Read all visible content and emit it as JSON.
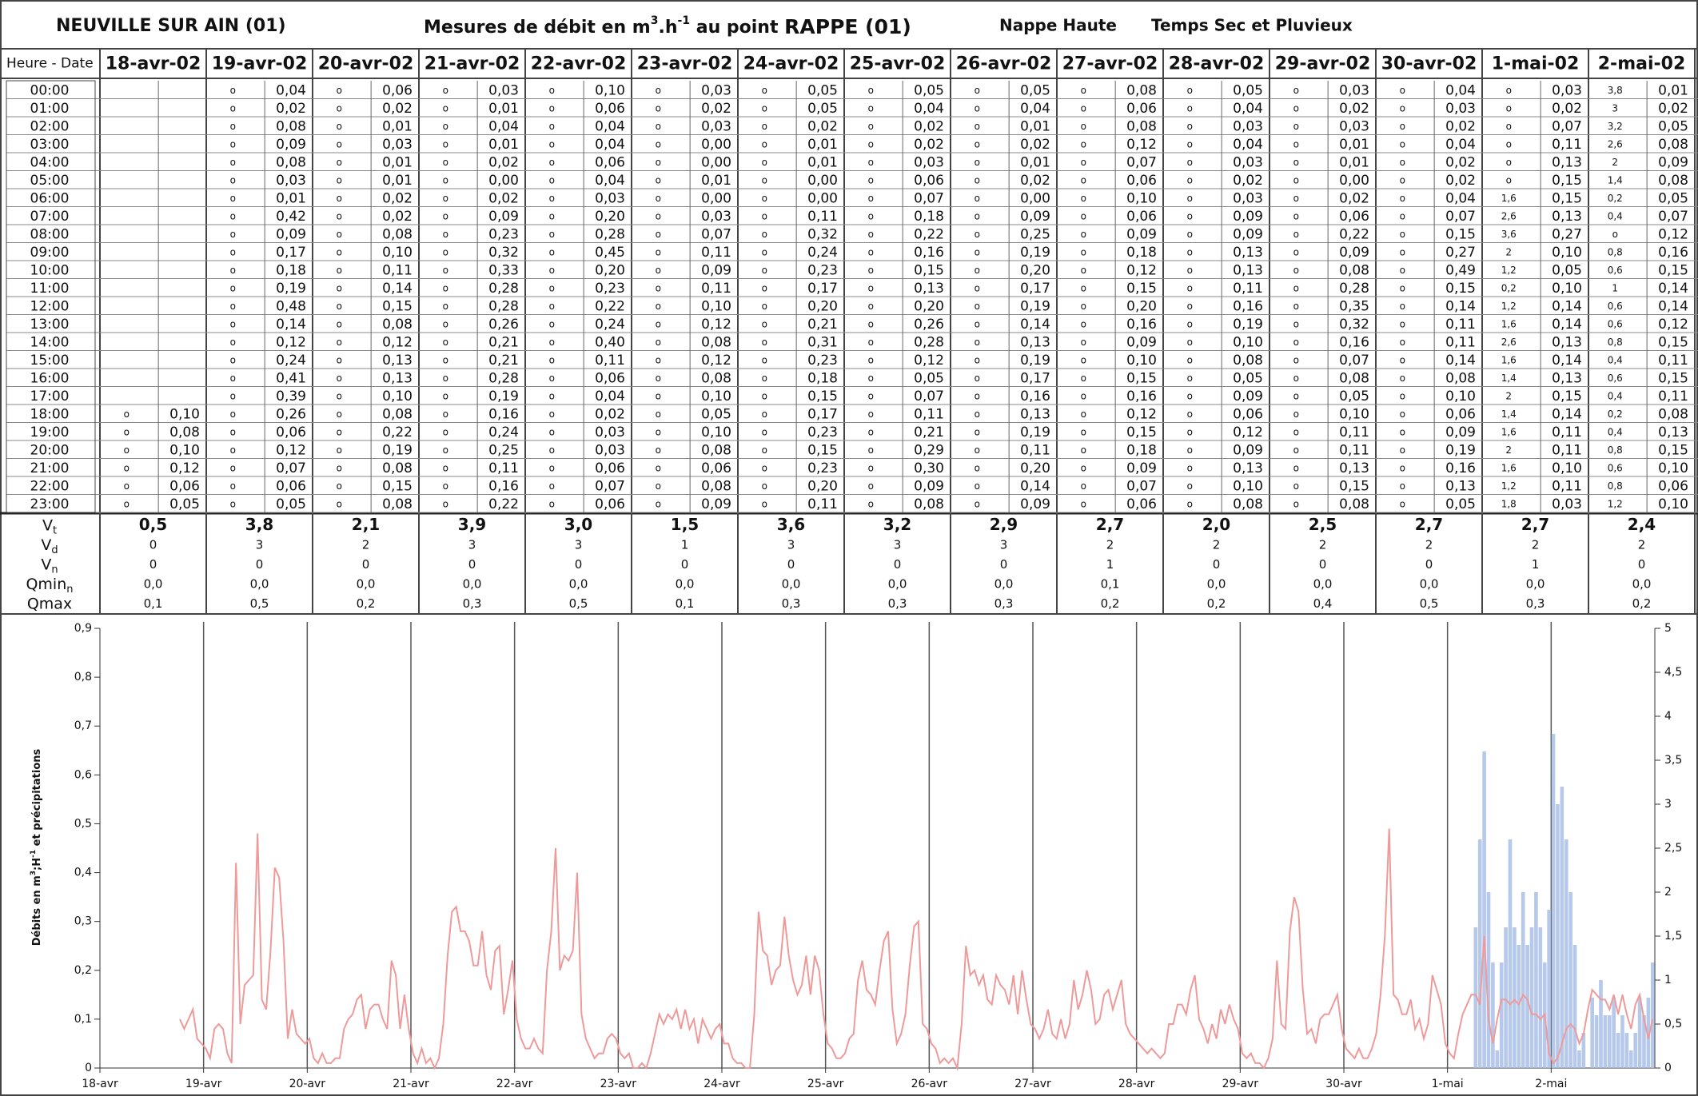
{
  "header": {
    "site": "NEUVILLE SUR AIN (01)",
    "title": [
      "Mesures de débit en m",
      "3",
      ".h",
      "-1",
      " au point ",
      "RAPPE (01)"
    ],
    "nappe": "Nappe Haute",
    "temps": "Temps Sec et Pluvieux"
  },
  "table": {
    "corner": "Heure - Date",
    "dates": [
      "18-avr-02",
      "19-avr-02",
      "20-avr-02",
      "21-avr-02",
      "22-avr-02",
      "23-avr-02",
      "24-avr-02",
      "25-avr-02",
      "26-avr-02",
      "27-avr-02",
      "28-avr-02",
      "29-avr-02",
      "30-avr-02",
      "1-mai-02",
      "2-mai-02"
    ],
    "hours": [
      "00:00",
      "01:00",
      "02:00",
      "03:00",
      "04:00",
      "05:00",
      "06:00",
      "07:00",
      "08:00",
      "09:00",
      "10:00",
      "11:00",
      "12:00",
      "13:00",
      "14:00",
      "15:00",
      "16:00",
      "17:00",
      "18:00",
      "19:00",
      "20:00",
      "21:00",
      "22:00",
      "23:00"
    ],
    "rain": [
      [
        null,
        null,
        null,
        null,
        null,
        null,
        null,
        null,
        null,
        null,
        null,
        null,
        null,
        null,
        null,
        null,
        null,
        null,
        "o",
        "o",
        "o",
        "o",
        "o",
        "o"
      ],
      [
        "o",
        "o",
        "o",
        "o",
        "o",
        "o",
        "o",
        "o",
        "o",
        "o",
        "o",
        "o",
        "o",
        "o",
        "o",
        "o",
        "o",
        "o",
        "o",
        "o",
        "o",
        "o",
        "o",
        "o"
      ],
      [
        "o",
        "o",
        "o",
        "o",
        "o",
        "o",
        "o",
        "o",
        "o",
        "o",
        "o",
        "o",
        "o",
        "o",
        "o",
        "o",
        "o",
        "o",
        "o",
        "o",
        "o",
        "o",
        "o",
        "o"
      ],
      [
        "o",
        "o",
        "o",
        "o",
        "o",
        "o",
        "o",
        "o",
        "o",
        "o",
        "o",
        "o",
        "o",
        "o",
        "o",
        "o",
        "o",
        "o",
        "o",
        "o",
        "o",
        "o",
        "o",
        "o"
      ],
      [
        "o",
        "o",
        "o",
        "o",
        "o",
        "o",
        "o",
        "o",
        "o",
        "o",
        "o",
        "o",
        "o",
        "o",
        "o",
        "o",
        "o",
        "o",
        "o",
        "o",
        "o",
        "o",
        "o",
        "o"
      ],
      [
        "o",
        "o",
        "o",
        "o",
        "o",
        "o",
        "o",
        "o",
        "o",
        "o",
        "o",
        "o",
        "o",
        "o",
        "o",
        "o",
        "o",
        "o",
        "o",
        "o",
        "o",
        "o",
        "o",
        "o"
      ],
      [
        "o",
        "o",
        "o",
        "o",
        "o",
        "o",
        "o",
        "o",
        "o",
        "o",
        "o",
        "o",
        "o",
        "o",
        "o",
        "o",
        "o",
        "o",
        "o",
        "o",
        "o",
        "o",
        "o",
        "o"
      ],
      [
        "o",
        "o",
        "o",
        "o",
        "o",
        "o",
        "o",
        "o",
        "o",
        "o",
        "o",
        "o",
        "o",
        "o",
        "o",
        "o",
        "o",
        "o",
        "o",
        "o",
        "o",
        "o",
        "o",
        "o"
      ],
      [
        "o",
        "o",
        "o",
        "o",
        "o",
        "o",
        "o",
        "o",
        "o",
        "o",
        "o",
        "o",
        "o",
        "o",
        "o",
        "o",
        "o",
        "o",
        "o",
        "o",
        "o",
        "o",
        "o",
        "o"
      ],
      [
        "o",
        "o",
        "o",
        "o",
        "o",
        "o",
        "o",
        "o",
        "o",
        "o",
        "o",
        "o",
        "o",
        "o",
        "o",
        "o",
        "o",
        "o",
        "o",
        "o",
        "o",
        "o",
        "o",
        "o"
      ],
      [
        "o",
        "o",
        "o",
        "o",
        "o",
        "o",
        "o",
        "o",
        "o",
        "o",
        "o",
        "o",
        "o",
        "o",
        "o",
        "o",
        "o",
        "o",
        "o",
        "o",
        "o",
        "o",
        "o",
        "o"
      ],
      [
        "o",
        "o",
        "o",
        "o",
        "o",
        "o",
        "o",
        "o",
        "o",
        "o",
        "o",
        "o",
        "o",
        "o",
        "o",
        "o",
        "o",
        "o",
        "o",
        "o",
        "o",
        "o",
        "o",
        "o"
      ],
      [
        "o",
        "o",
        "o",
        "o",
        "o",
        "o",
        "o",
        "o",
        "o",
        "o",
        "o",
        "o",
        "o",
        "o",
        "o",
        "o",
        "o",
        "o",
        "o",
        "o",
        "o",
        "o",
        "o",
        "o"
      ],
      [
        "o",
        "o",
        "o",
        "o",
        "o",
        "o",
        "1,6",
        "2,6",
        "3,6",
        "2",
        "1,2",
        "0,2",
        "1,2",
        "1,6",
        "2,6",
        "1,6",
        "1,4",
        "2",
        "1,4",
        "1,6",
        "2",
        "1,6",
        "1,2",
        "1,8"
      ],
      [
        "3,8",
        "3",
        "3,2",
        "2,6",
        "2",
        "1,4",
        "0,2",
        "0,4",
        "o",
        "0,8",
        "0,6",
        "1",
        "0,6",
        "0,6",
        "0,8",
        "0,4",
        "0,6",
        "0,4",
        "0,2",
        "0,4",
        "0,8",
        "0,6",
        "0,8",
        "1,2"
      ]
    ],
    "flow": [
      [
        null,
        null,
        null,
        null,
        null,
        null,
        null,
        null,
        null,
        null,
        null,
        null,
        null,
        null,
        null,
        null,
        null,
        null,
        "0,10",
        "0,08",
        "0,10",
        "0,12",
        "0,06",
        "0,05"
      ],
      [
        "0,04",
        "0,02",
        "0,08",
        "0,09",
        "0,08",
        "0,03",
        "0,01",
        "0,42",
        "0,09",
        "0,17",
        "0,18",
        "0,19",
        "0,48",
        "0,14",
        "0,12",
        "0,24",
        "0,41",
        "0,39",
        "0,26",
        "0,06",
        "0,12",
        "0,07",
        "0,06",
        "0,05"
      ],
      [
        "0,06",
        "0,02",
        "0,01",
        "0,03",
        "0,01",
        "0,01",
        "0,02",
        "0,02",
        "0,08",
        "0,10",
        "0,11",
        "0,14",
        "0,15",
        "0,08",
        "0,12",
        "0,13",
        "0,13",
        "0,10",
        "0,08",
        "0,22",
        "0,19",
        "0,08",
        "0,15",
        "0,08"
      ],
      [
        "0,03",
        "0,01",
        "0,04",
        "0,01",
        "0,02",
        "0,00",
        "0,02",
        "0,09",
        "0,23",
        "0,32",
        "0,33",
        "0,28",
        "0,28",
        "0,26",
        "0,21",
        "0,21",
        "0,28",
        "0,19",
        "0,16",
        "0,24",
        "0,25",
        "0,11",
        "0,16",
        "0,22"
      ],
      [
        "0,10",
        "0,06",
        "0,04",
        "0,04",
        "0,06",
        "0,04",
        "0,03",
        "0,20",
        "0,28",
        "0,45",
        "0,20",
        "0,23",
        "0,22",
        "0,24",
        "0,40",
        "0,11",
        "0,06",
        "0,04",
        "0,02",
        "0,03",
        "0,03",
        "0,06",
        "0,07",
        "0,06"
      ],
      [
        "0,03",
        "0,02",
        "0,03",
        "0,00",
        "0,00",
        "0,01",
        "0,00",
        "0,03",
        "0,07",
        "0,11",
        "0,09",
        "0,11",
        "0,10",
        "0,12",
        "0,08",
        "0,12",
        "0,08",
        "0,10",
        "0,05",
        "0,10",
        "0,08",
        "0,06",
        "0,08",
        "0,09"
      ],
      [
        "0,05",
        "0,05",
        "0,02",
        "0,01",
        "0,01",
        "0,00",
        "0,00",
        "0,11",
        "0,32",
        "0,24",
        "0,23",
        "0,17",
        "0,20",
        "0,21",
        "0,31",
        "0,23",
        "0,18",
        "0,15",
        "0,17",
        "0,23",
        "0,15",
        "0,23",
        "0,20",
        "0,11"
      ],
      [
        "0,05",
        "0,04",
        "0,02",
        "0,02",
        "0,03",
        "0,06",
        "0,07",
        "0,18",
        "0,22",
        "0,16",
        "0,15",
        "0,13",
        "0,20",
        "0,26",
        "0,28",
        "0,12",
        "0,05",
        "0,07",
        "0,11",
        "0,21",
        "0,29",
        "0,30",
        "0,09",
        "0,08"
      ],
      [
        "0,05",
        "0,04",
        "0,01",
        "0,02",
        "0,01",
        "0,02",
        "0,00",
        "0,09",
        "0,25",
        "0,19",
        "0,20",
        "0,17",
        "0,19",
        "0,14",
        "0,13",
        "0,19",
        "0,17",
        "0,16",
        "0,13",
        "0,19",
        "0,11",
        "0,20",
        "0,14",
        "0,09"
      ],
      [
        "0,08",
        "0,06",
        "0,08",
        "0,12",
        "0,07",
        "0,06",
        "0,10",
        "0,06",
        "0,09",
        "0,18",
        "0,12",
        "0,15",
        "0,20",
        "0,16",
        "0,09",
        "0,10",
        "0,15",
        "0,16",
        "0,12",
        "0,15",
        "0,18",
        "0,09",
        "0,07",
        "0,06"
      ],
      [
        "0,05",
        "0,04",
        "0,03",
        "0,04",
        "0,03",
        "0,02",
        "0,03",
        "0,09",
        "0,09",
        "0,13",
        "0,13",
        "0,11",
        "0,16",
        "0,19",
        "0,10",
        "0,08",
        "0,05",
        "0,09",
        "0,06",
        "0,12",
        "0,09",
        "0,13",
        "0,10",
        "0,08"
      ],
      [
        "0,03",
        "0,02",
        "0,03",
        "0,01",
        "0,01",
        "0,00",
        "0,02",
        "0,06",
        "0,22",
        "0,09",
        "0,08",
        "0,28",
        "0,35",
        "0,32",
        "0,16",
        "0,07",
        "0,08",
        "0,05",
        "0,10",
        "0,11",
        "0,11",
        "0,13",
        "0,15",
        "0,08"
      ],
      [
        "0,04",
        "0,03",
        "0,02",
        "0,04",
        "0,02",
        "0,02",
        "0,04",
        "0,07",
        "0,15",
        "0,27",
        "0,49",
        "0,15",
        "0,14",
        "0,11",
        "0,11",
        "0,14",
        "0,08",
        "0,10",
        "0,06",
        "0,09",
        "0,19",
        "0,16",
        "0,13",
        "0,05"
      ],
      [
        "0,03",
        "0,02",
        "0,07",
        "0,11",
        "0,13",
        "0,15",
        "0,15",
        "0,13",
        "0,27",
        "0,10",
        "0,05",
        "0,10",
        "0,14",
        "0,14",
        "0,13",
        "0,14",
        "0,13",
        "0,15",
        "0,14",
        "0,11",
        "0,11",
        "0,10",
        "0,11",
        "0,03"
      ],
      [
        "0,01",
        "0,02",
        "0,05",
        "0,08",
        "0,09",
        "0,08",
        "0,05",
        "0,07",
        "0,12",
        "0,16",
        "0,15",
        "0,14",
        "0,14",
        "0,12",
        "0,15",
        "0,11",
        "0,15",
        "0,11",
        "0,08",
        "0,13",
        "0,15",
        "0,10",
        "0,06",
        "0,10"
      ]
    ],
    "summary": [
      {
        "label": "V",
        "sub": "t",
        "values": [
          "0,5",
          "3,8",
          "2,1",
          "3,9",
          "3,0",
          "1,5",
          "3,6",
          "3,2",
          "2,9",
          "2,7",
          "2,0",
          "2,5",
          "2,7",
          "2,7",
          "2,4"
        ]
      },
      {
        "label": "V",
        "sub": "d",
        "values": [
          "0",
          "3",
          "2",
          "3",
          "3",
          "1",
          "3",
          "3",
          "3",
          "2",
          "2",
          "2",
          "2",
          "2",
          "2"
        ]
      },
      {
        "label": "V",
        "sub": "n",
        "values": [
          "0",
          "0",
          "0",
          "0",
          "0",
          "0",
          "0",
          "0",
          "0",
          "1",
          "0",
          "0",
          "0",
          "1",
          "0"
        ]
      },
      {
        "label": "Qmin",
        "sub": "n",
        "values": [
          "0,0",
          "0,0",
          "0,0",
          "0,0",
          "0,0",
          "0,0",
          "0,0",
          "0,0",
          "0,0",
          "0,1",
          "0,0",
          "0,0",
          "0,0",
          "0,0",
          "0,0"
        ]
      },
      {
        "label": "Qmax",
        "values": [
          "0,1",
          "0,5",
          "0,2",
          "0,3",
          "0,5",
          "0,1",
          "0,3",
          "0,3",
          "0,3",
          "0,2",
          "0,2",
          "0,4",
          "0,5",
          "0,3",
          "0,2"
        ]
      }
    ]
  },
  "chart": {
    "type": "line",
    "ylabel": [
      "Débits en m",
      "3",
      ";H",
      "-1",
      " et précipitations"
    ],
    "xticks": [
      "18-avr",
      "19-avr",
      "20-avr",
      "21-avr",
      "22-avr",
      "23-avr",
      "24-avr",
      "25-avr",
      "26-avr",
      "27-avr",
      "28-avr",
      "29-avr",
      "30-avr",
      "1-mai",
      "2-mai"
    ],
    "ylim": [
      0,
      0.9
    ],
    "yticks": [
      0,
      {
        "value": 0.1,
        "label": "0,1"
      },
      {
        "value": 0.2,
        "label": "0,2"
      },
      {
        "value": 0.3,
        "label": "0,3"
      },
      {
        "value": 0.4,
        "label": "0,4"
      },
      {
        "value": 0.5,
        "label": "0,5"
      },
      {
        "value": 0.6,
        "label": "0,6"
      },
      {
        "value": 0.7,
        "label": "0,7"
      },
      {
        "value": 0.8,
        "label": "0,8"
      },
      {
        "value": 0.9,
        "label": "0,9"
      }
    ],
    "y2lim": [
      0,
      5
    ],
    "y2ticks": [
      0,
      {
        "value": 0.5,
        "label": "0,5"
      },
      1,
      {
        "value": 1.5,
        "label": "1,5"
      },
      2,
      {
        "value": 2.5,
        "label": "2,5"
      },
      3,
      {
        "value": 3.5,
        "label": "3,5"
      },
      4,
      {
        "value": 4.5,
        "label": "4,5"
      },
      5
    ],
    "line_color": "#ee9a9a",
    "bar_color": "#a9c0e6"
  }
}
